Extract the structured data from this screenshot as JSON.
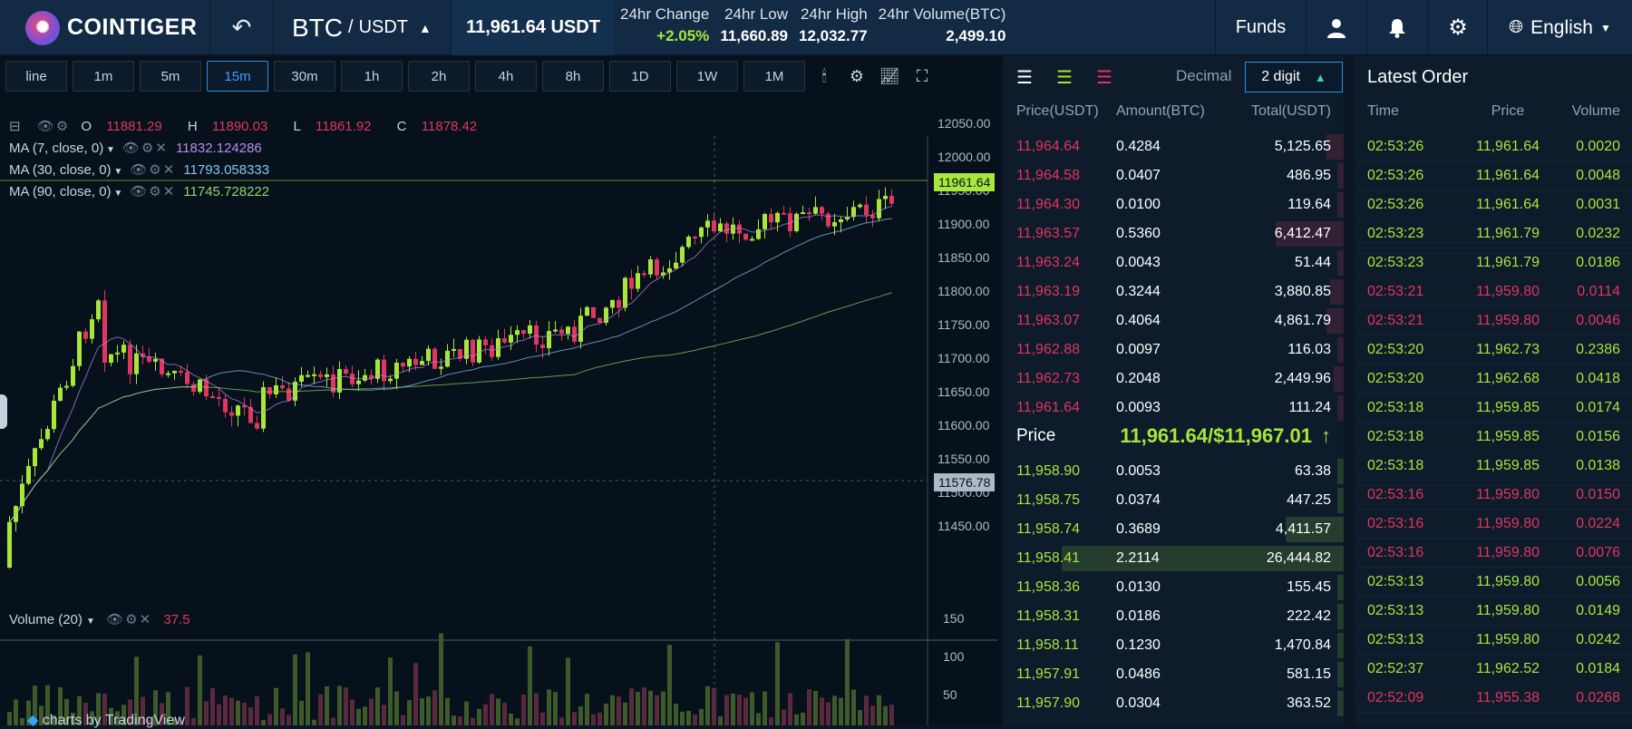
{
  "topbar": {
    "brand": "COINTIGER",
    "pair_base": "BTC",
    "pair_sep": "/",
    "pair_quote": "USDT",
    "last_price": "11,961.64 USDT",
    "stats": [
      {
        "label": "24hr Change",
        "value": "+2.05%",
        "up": true
      },
      {
        "label": "24hr Low",
        "value": "11,660.89"
      },
      {
        "label": "24hr High",
        "value": "12,032.77"
      },
      {
        "label": "24hr Volume(BTC)",
        "value": "2,499.10"
      }
    ],
    "funds_label": "Funds",
    "language": "English",
    "icons": [
      "back-icon",
      "user-icon",
      "bell-icon",
      "gear-icon",
      "globe-icon"
    ]
  },
  "chart": {
    "timeframes": [
      "line",
      "1m",
      "5m",
      "15m",
      "30m",
      "1h",
      "2h",
      "4h",
      "8h",
      "1D",
      "1W",
      "1M"
    ],
    "active_timeframe": "15m",
    "ohlc": {
      "o": "O",
      "o_val": "11881.29",
      "h": "H",
      "h_val": "11890.03",
      "l": "L",
      "l_val": "11861.92",
      "c": "C",
      "c_val": "11878.42"
    },
    "ma": [
      {
        "label": "MA (7, close, 0)",
        "value": "11832.124286",
        "color": "#b58de8"
      },
      {
        "label": "MA (30, close, 0)",
        "value": "11793.058333",
        "color": "#86c5f0"
      },
      {
        "label": "MA (90, close, 0)",
        "value": "11745.728222",
        "color": "#8fd46a"
      }
    ],
    "price_axis": [
      "12050.00",
      "12000.00",
      "11950.00",
      "11900.00",
      "11850.00",
      "11800.00",
      "11750.00",
      "11700.00",
      "11650.00",
      "11600.00",
      "11550.00",
      "11500.00",
      "11450.00"
    ],
    "current_price_tag": "11961.64",
    "crosshair_price_tag": "11576.78",
    "volume_label": "Volume (20)",
    "volume_value": "37.5",
    "volume_axis": [
      "150",
      "100",
      "50"
    ],
    "attribution": "charts by TradingView",
    "colors": {
      "up": "#a8e63a",
      "down": "#e0365f",
      "bg": "#07111c"
    }
  },
  "orderbook": {
    "decimal_label": "Decimal",
    "digit_label": "2 digit",
    "columns": [
      "Price(USDT)",
      "Amount(BTC)",
      "Total(USDT)"
    ],
    "asks": [
      {
        "price": "11,964.64",
        "amount": "0.4284",
        "total": "5,125.65",
        "depth": 0.05
      },
      {
        "price": "11,964.58",
        "amount": "0.0407",
        "total": "486.95",
        "depth": 0.02
      },
      {
        "price": "11,964.30",
        "amount": "0.0100",
        "total": "119.64",
        "depth": 0.02
      },
      {
        "price": "11,963.57",
        "amount": "0.5360",
        "total": "6,412.47",
        "depth": 0.2
      },
      {
        "price": "11,963.24",
        "amount": "0.0043",
        "total": "51.44",
        "depth": 0.02
      },
      {
        "price": "11,963.19",
        "amount": "0.3244",
        "total": "3,880.85",
        "depth": 0.04
      },
      {
        "price": "11,963.07",
        "amount": "0.4064",
        "total": "4,861.79",
        "depth": 0.05
      },
      {
        "price": "11,962.88",
        "amount": "0.0097",
        "total": "116.03",
        "depth": 0.02
      },
      {
        "price": "11,962.73",
        "amount": "0.2048",
        "total": "2,449.96",
        "depth": 0.03
      },
      {
        "price": "11,961.64",
        "amount": "0.0093",
        "total": "111.24",
        "depth": 0.02
      }
    ],
    "mid_label": "Price",
    "mid_price": "11,961.64/$11,967.01",
    "mid_arrow": "↑",
    "bids": [
      {
        "price": "11,958.90",
        "amount": "0.0053",
        "total": "63.38",
        "depth": 0.02
      },
      {
        "price": "11,958.75",
        "amount": "0.0374",
        "total": "447.25",
        "depth": 0.02
      },
      {
        "price": "11,958.74",
        "amount": "0.3689",
        "total": "4,411.57",
        "depth": 0.17
      },
      {
        "price": "11,958.41",
        "amount": "2.2114",
        "total": "26,444.82",
        "depth": 0.83
      },
      {
        "price": "11,958.36",
        "amount": "0.0130",
        "total": "155.45",
        "depth": 0.02
      },
      {
        "price": "11,958.31",
        "amount": "0.0186",
        "total": "222.42",
        "depth": 0.02
      },
      {
        "price": "11,958.11",
        "amount": "0.1230",
        "total": "1,470.84",
        "depth": 0.02
      },
      {
        "price": "11,957.91",
        "amount": "0.0486",
        "total": "581.15",
        "depth": 0.02
      },
      {
        "price": "11,957.90",
        "amount": "0.0304",
        "total": "363.52",
        "depth": 0.02
      }
    ]
  },
  "latest_order": {
    "title": "Latest Order",
    "columns": [
      "Time",
      "Price",
      "Volume"
    ],
    "rows": [
      {
        "time": "02:53:26",
        "price": "11,961.64",
        "volume": "0.0020",
        "side": "buy"
      },
      {
        "time": "02:53:26",
        "price": "11,961.64",
        "volume": "0.0048",
        "side": "buy"
      },
      {
        "time": "02:53:26",
        "price": "11,961.64",
        "volume": "0.0031",
        "side": "buy"
      },
      {
        "time": "02:53:23",
        "price": "11,961.79",
        "volume": "0.0232",
        "side": "buy"
      },
      {
        "time": "02:53:23",
        "price": "11,961.79",
        "volume": "0.0186",
        "side": "buy"
      },
      {
        "time": "02:53:21",
        "price": "11,959.80",
        "volume": "0.0114",
        "side": "sell"
      },
      {
        "time": "02:53:21",
        "price": "11,959.80",
        "volume": "0.0046",
        "side": "sell"
      },
      {
        "time": "02:53:20",
        "price": "11,962.73",
        "volume": "0.2386",
        "side": "buy"
      },
      {
        "time": "02:53:20",
        "price": "11,962.68",
        "volume": "0.0418",
        "side": "buy"
      },
      {
        "time": "02:53:18",
        "price": "11,959.85",
        "volume": "0.0174",
        "side": "buy"
      },
      {
        "time": "02:53:18",
        "price": "11,959.85",
        "volume": "0.0156",
        "side": "buy"
      },
      {
        "time": "02:53:18",
        "price": "11,959.85",
        "volume": "0.0138",
        "side": "buy"
      },
      {
        "time": "02:53:16",
        "price": "11,959.80",
        "volume": "0.0150",
        "side": "sell"
      },
      {
        "time": "02:53:16",
        "price": "11,959.80",
        "volume": "0.0224",
        "side": "sell"
      },
      {
        "time": "02:53:16",
        "price": "11,959.80",
        "volume": "0.0076",
        "side": "sell"
      },
      {
        "time": "02:53:13",
        "price": "11,959.80",
        "volume": "0.0056",
        "side": "buy"
      },
      {
        "time": "02:53:13",
        "price": "11,959.80",
        "volume": "0.0149",
        "side": "buy"
      },
      {
        "time": "02:53:13",
        "price": "11,959.80",
        "volume": "0.0242",
        "side": "buy"
      },
      {
        "time": "02:52:37",
        "price": "11,962.52",
        "volume": "0.0184",
        "side": "buy"
      },
      {
        "time": "02:52:09",
        "price": "11,955.38",
        "volume": "0.0268",
        "side": "sell"
      }
    ]
  }
}
